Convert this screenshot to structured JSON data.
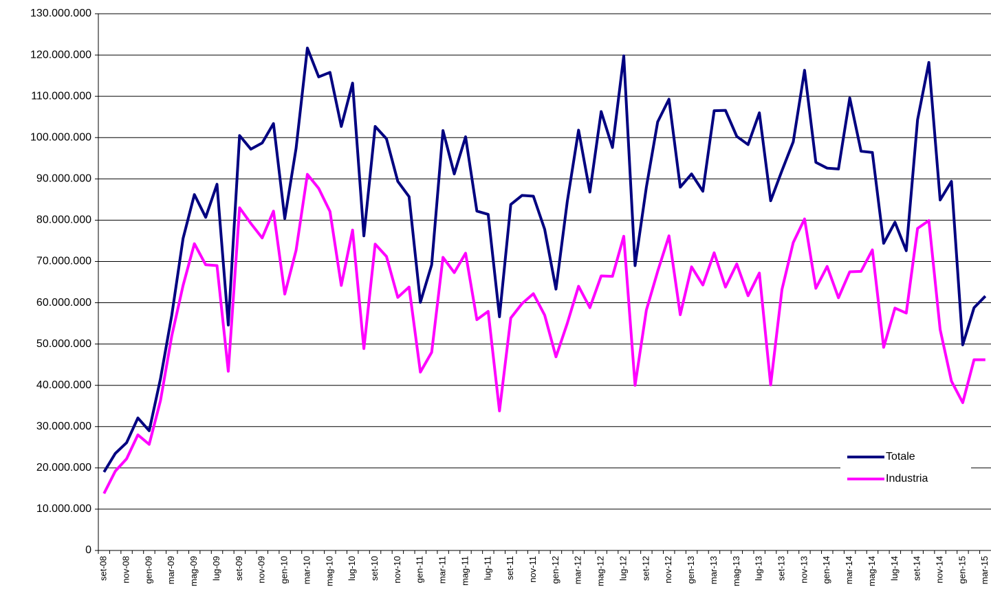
{
  "chart_data": {
    "type": "line",
    "categories": [
      "set-08",
      null,
      "nov-08",
      null,
      "gen-09",
      null,
      "mar-09",
      null,
      "mag-09",
      null,
      "lug-09",
      null,
      "set-09",
      null,
      "nov-09",
      null,
      "gen-10",
      null,
      "mar-10",
      null,
      "mag-10",
      null,
      "lug-10",
      null,
      "set-10",
      null,
      "nov-10",
      null,
      "gen-11",
      null,
      "mar-11",
      null,
      "mag-11",
      null,
      "lug-11",
      null,
      "set-11",
      null,
      "nov-11",
      null,
      "gen-12",
      null,
      "mar-12",
      null,
      "mag-12",
      null,
      "lug-12",
      null,
      "set-12",
      null,
      "nov-12",
      null,
      "gen-13",
      null,
      "mar-13",
      null,
      "mag-13",
      null,
      "lug-13",
      null,
      "set-13",
      null,
      "nov-13",
      null,
      "gen-14",
      null,
      "mar-14",
      null,
      "mag-14",
      null,
      "lug-14",
      null,
      "set-14",
      null,
      "nov-14",
      null,
      "gen-15",
      null,
      "mar-15"
    ],
    "series": [
      {
        "name": "Totale",
        "color": "#000080",
        "values": [
          19000000,
          23500000,
          26100000,
          32100000,
          29000000,
          41600000,
          57000000,
          75600000,
          86200000,
          80700000,
          88700000,
          54600000,
          100500000,
          97200000,
          98700000,
          103400000,
          80400000,
          97400000,
          121700000,
          114700000,
          115800000,
          102700000,
          113200000,
          76200000,
          102700000,
          99700000,
          89400000,
          85700000,
          60100000,
          69200000,
          101700000,
          91200000,
          100200000,
          82200000,
          81400000,
          56600000,
          83800000,
          86000000,
          85800000,
          77800000,
          63300000,
          84500000,
          101800000,
          86800000,
          106300000,
          97600000,
          119800000,
          69000000,
          88000000,
          103800000,
          109300000,
          88000000,
          91200000,
          87000000,
          106500000,
          106600000,
          100300000,
          98300000,
          106000000,
          84700000,
          92000000,
          99000000,
          116300000,
          94000000,
          92600000,
          92400000,
          109600000,
          96700000,
          96400000,
          74400000,
          79500000,
          72600000,
          104300000,
          118200000,
          84900000,
          89400000,
          49800000,
          58800000,
          61600000
        ]
      },
      {
        "name": "Industria",
        "color": "#ff00ff",
        "values": [
          13800000,
          19200000,
          22200000,
          28000000,
          25700000,
          36300000,
          52000000,
          64200000,
          74300000,
          69200000,
          69000000,
          43400000,
          83000000,
          79200000,
          75700000,
          82200000,
          62100000,
          72700000,
          91100000,
          87700000,
          82100000,
          64200000,
          77600000,
          48900000,
          74200000,
          71200000,
          61300000,
          63800000,
          43200000,
          48000000,
          71000000,
          67300000,
          72000000,
          55900000,
          57900000,
          33800000,
          56300000,
          59800000,
          62200000,
          57000000,
          46900000,
          55000000,
          64000000,
          58800000,
          66500000,
          66400000,
          76100000,
          40000000,
          58200000,
          67600000,
          76200000,
          57100000,
          68700000,
          64300000,
          72100000,
          63800000,
          69400000,
          61700000,
          67200000,
          40100000,
          63200000,
          74600000,
          80300000,
          63500000,
          68800000,
          61200000,
          67500000,
          67600000,
          72800000,
          49200000,
          58700000,
          57500000,
          78000000,
          79900000,
          53500000,
          41000000,
          35800000,
          46200000,
          46200000
        ]
      }
    ],
    "ylim": [
      0,
      130000000
    ],
    "yticks": [
      0,
      {
        "value": 10000000,
        "label": "10.000.000"
      },
      {
        "value": 20000000,
        "label": "20.000.000"
      },
      {
        "value": 30000000,
        "label": "30.000.000"
      },
      {
        "value": 40000000,
        "label": "40.000.000"
      },
      {
        "value": 50000000,
        "label": "50.000.000"
      },
      {
        "value": 60000000,
        "label": "60.000.000"
      },
      {
        "value": 70000000,
        "label": "70.000.000"
      },
      {
        "value": 80000000,
        "label": "80.000.000"
      },
      {
        "value": 90000000,
        "label": "90.000.000"
      },
      {
        "value": 100000000,
        "label": "100.000.000"
      },
      {
        "value": 110000000,
        "label": "110.000.000"
      },
      {
        "value": 120000000,
        "label": "120.000.000"
      },
      {
        "value": 130000000,
        "label": "130.000.000"
      }
    ],
    "grid": true,
    "legend": "right"
  }
}
